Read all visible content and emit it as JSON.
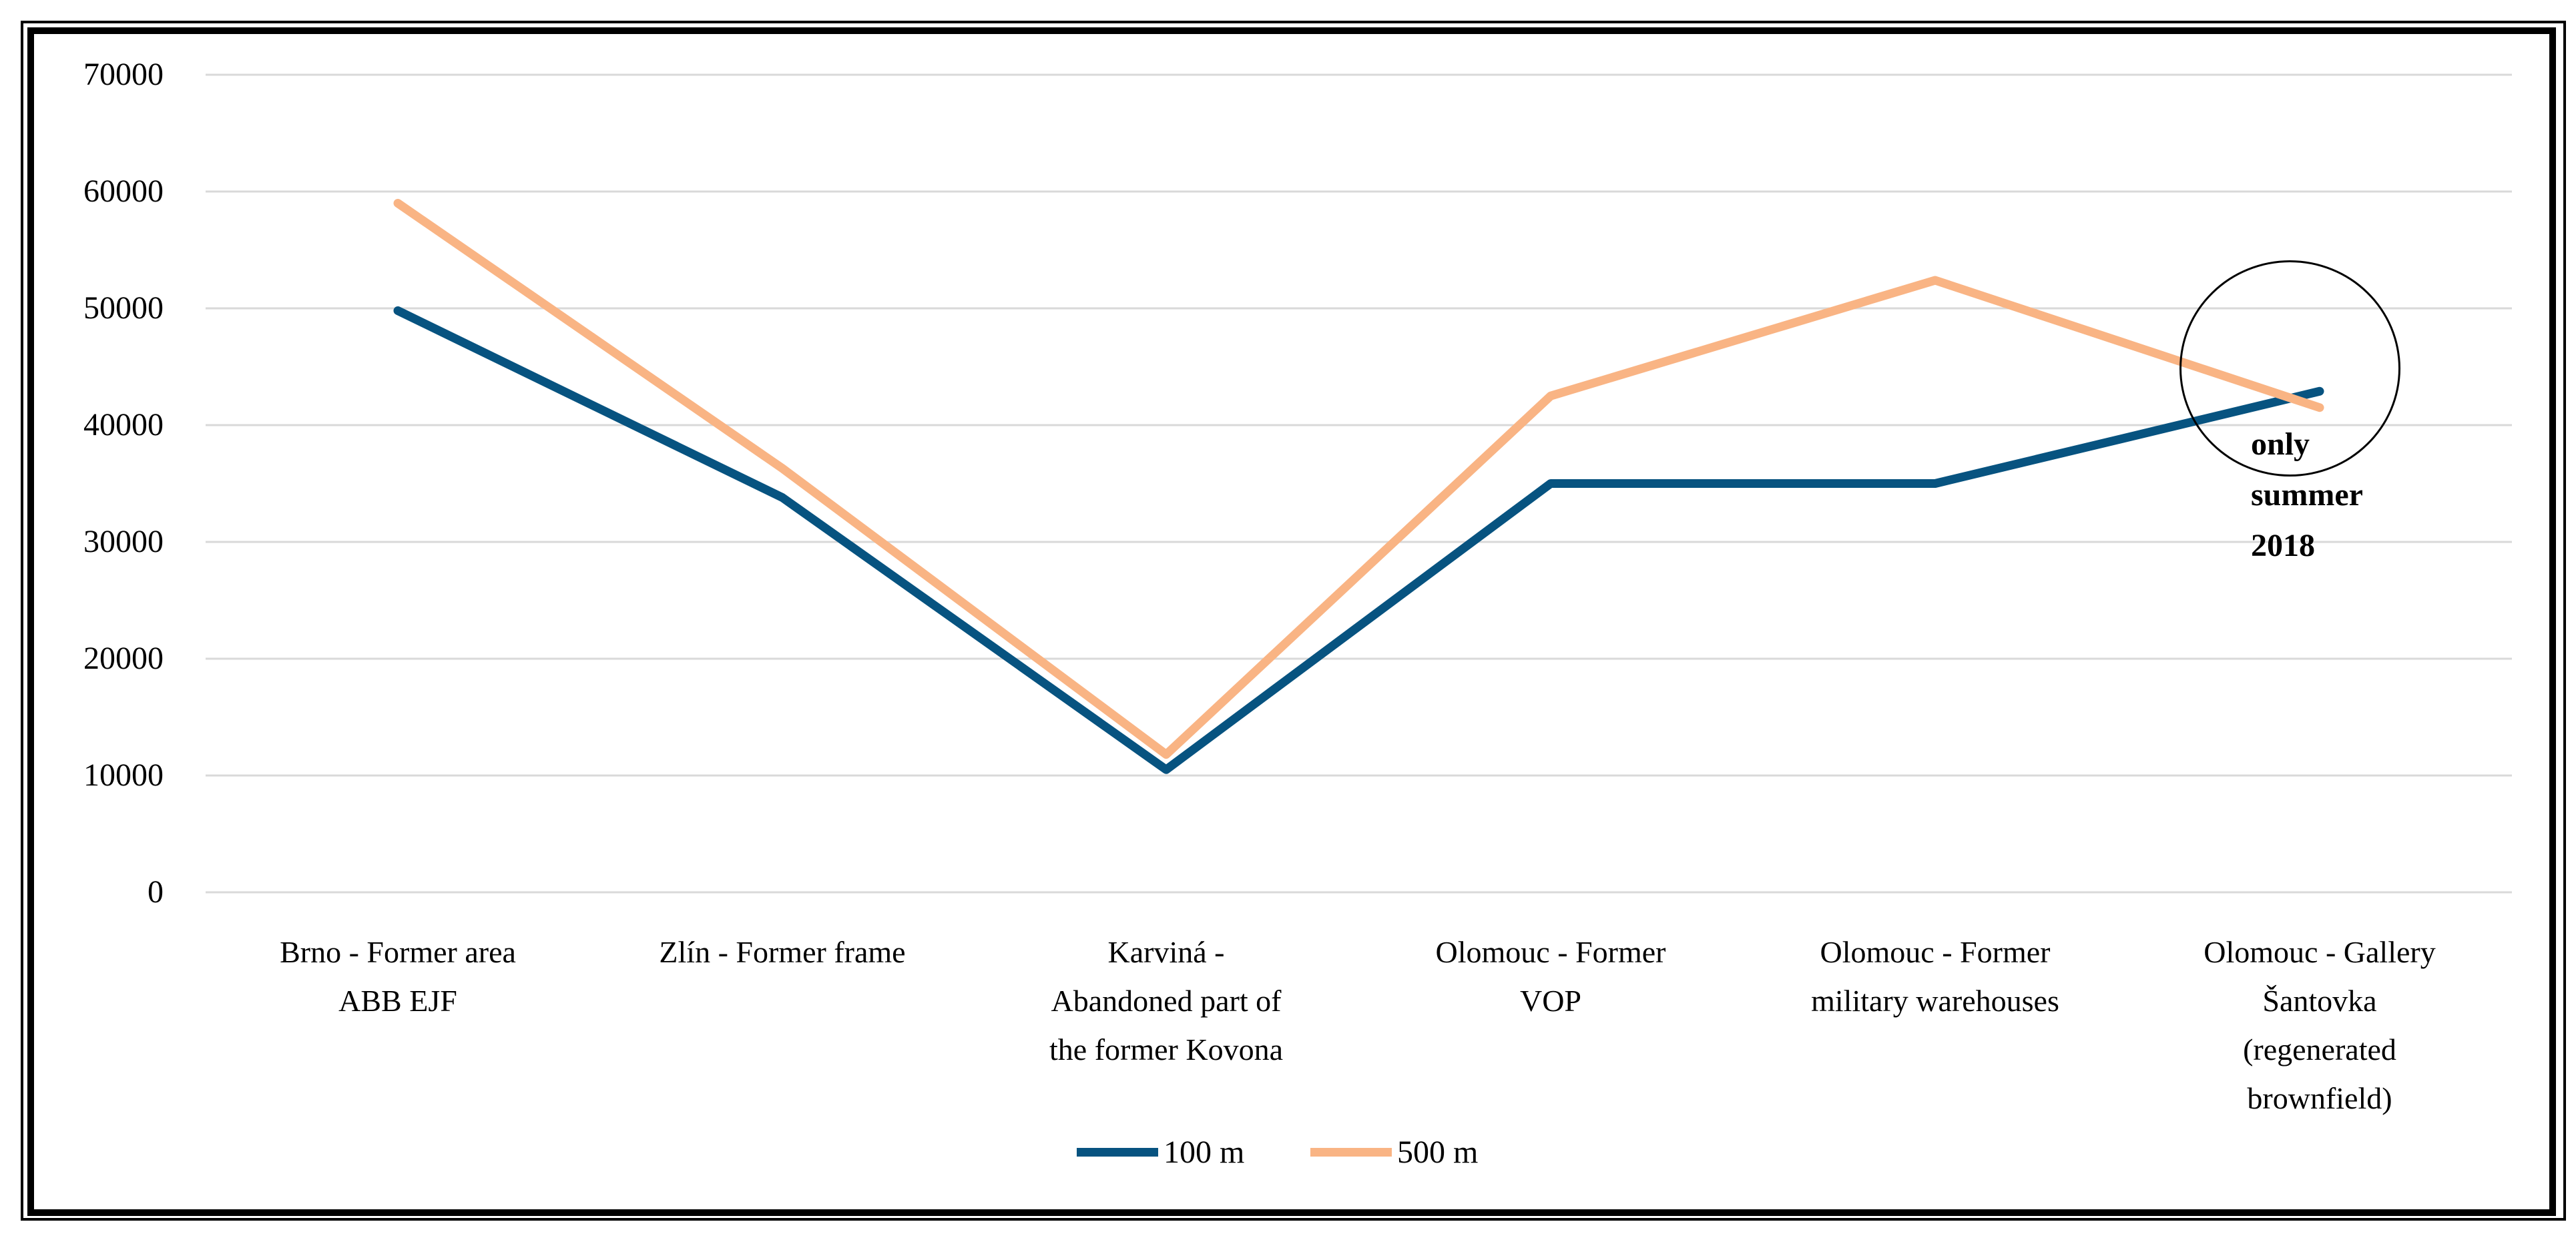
{
  "figure": {
    "background": "#ffffff",
    "border_color": "#000000"
  },
  "chart_data": {
    "type": "line",
    "title": "",
    "xlabel": "",
    "ylabel": "",
    "categories": [
      "Brno - Former area ABB EJF",
      "Zlín - Former frame",
      "Karviná - Abandoned part of the former Kovona",
      "Olomouc - Former VOP",
      "Olomouc - Former military warehouses",
      "Olomouc - Gallery Šantovka (regenerated brownfield)"
    ],
    "categories_lines": [
      [
        "Brno - Former area",
        "ABB EJF"
      ],
      [
        "Zlín - Former frame"
      ],
      [
        "Karviná -",
        "Abandoned part of",
        "the former Kovona"
      ],
      [
        "Olomouc - Former",
        "VOP"
      ],
      [
        "Olomouc - Former",
        "military warehouses"
      ],
      [
        "Olomouc - Gallery",
        "Šantovka",
        "(regenerated",
        "brownfield)"
      ]
    ],
    "series": [
      {
        "name": "100 m",
        "color": "#075380",
        "values": [
          49800,
          33800,
          10500,
          35000,
          35000,
          42900
        ]
      },
      {
        "name": "500 m",
        "color": "#F9B484",
        "values": [
          59000,
          36300,
          11800,
          42500,
          52400,
          41500
        ]
      }
    ],
    "ylim": [
      0,
      70000
    ],
    "ytick_step": 10000,
    "yticks": [
      "70000",
      "60000",
      "50000",
      "40000",
      "30000",
      "20000",
      "10000",
      "0"
    ],
    "grid": "horizontal",
    "gridline_color": "#D9D9D9",
    "legend_position": "bottom-center",
    "annotation": {
      "shape": "circle",
      "target": "last-category data points",
      "text": "only summer 2018",
      "lines": [
        "only",
        "summer",
        "2018"
      ]
    }
  }
}
